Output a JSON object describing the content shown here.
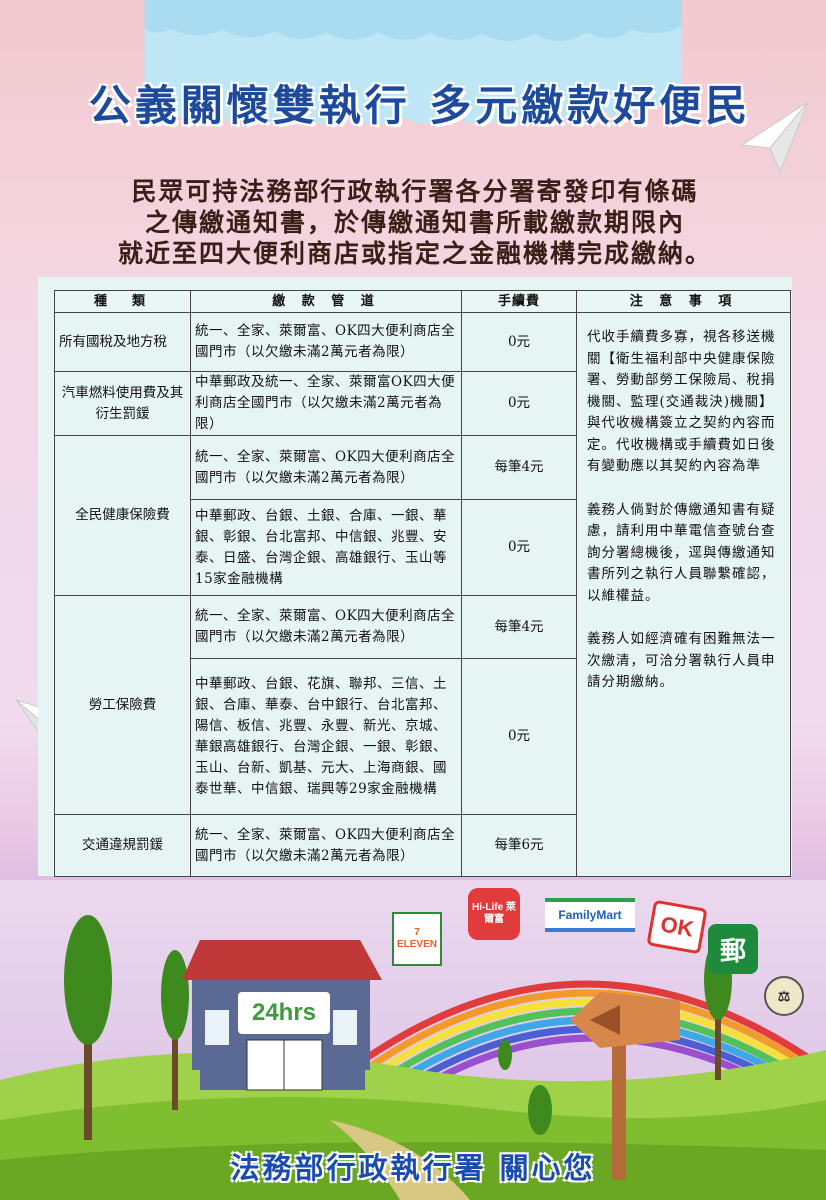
{
  "title": "公義關懷雙執行 多元繳款好便民",
  "intro": {
    "line1": "民眾可持法務部行政執行署各分署寄發印有條碼",
    "line2": "之傳繳通知書，於傳繳通知書所載繳款期限內",
    "line3": "就近至四大便利商店或指定之金融機構完成繳納。"
  },
  "table": {
    "headers": {
      "type": "種　類",
      "location": "繳 款 管 道",
      "fee": "手續費",
      "notes": "注 意 事 項"
    },
    "rows": [
      {
        "type": "所有國稅及地方稅",
        "location": "統一、全家、萊爾富、OK四大便利商店全國門市（以欠繳未滿2萬元者為限）",
        "fee": "0元"
      },
      {
        "type": "汽車燃料使用費及其衍生罰鍰",
        "location": "中華郵政及統一、全家、萊爾富OK四大便利商店全國門市（以欠繳未滿2萬元者為限）",
        "fee": "0元"
      },
      {
        "type": "全民健康保險費",
        "location": "統一、全家、萊爾富、OK四大便利商店全國門市（以欠繳未滿2萬元者為限）",
        "fee": "每筆4元"
      },
      {
        "type": "",
        "location": "中華郵政、台銀、土銀、合庫、一銀、華銀、彰銀、台北富邦、中信銀、兆豐、安泰、日盛、台灣企銀、高雄銀行、玉山等15家金融機構",
        "fee": "0元"
      },
      {
        "type": "勞工保險費",
        "location": "統一、全家、萊爾富、OK四大便利商店全國門市（以欠繳未滿2萬元者為限）",
        "fee": "每筆4元"
      },
      {
        "type": "",
        "location": "中華郵政、台銀、花旗、聯邦、三信、土銀、合庫、華泰、台中銀行、台北富邦、陽信、板信、兆豐、永豐、新光、京城、華銀高雄銀行、台灣企銀、一銀、彰銀、玉山、台新、凱基、元大、上海商銀、國泰世華、中信銀、瑞興等29家金融機構",
        "fee": "0元"
      },
      {
        "type": "交通違規罰鍰",
        "location": "統一、全家、萊爾富、OK四大便利商店全國門市（以欠繳未滿2萬元者為限）",
        "fee": "每筆6元"
      }
    ],
    "notes": [
      "代收手續費多寡，視各移送機關【衛生福利部中央健康保險署、勞動部勞工保險局、稅捐機關、監理(交通裁決)機關】與代收機構簽立之契約內容而定。代收機構或手續費如日後有變動應以其契約內容為準",
      "義務人倘對於傳繳通知書有疑慮，請利用中華電信查號台查詢分署總機後，逕與傳繳通知書所列之執行人員聯繫確認，以維權益。",
      "義務人如經濟確有困難無法一次繳清，可洽分署執行人員申請分期繳納。"
    ]
  },
  "store": {
    "hours": "24hrs"
  },
  "logos": {
    "seven": "7 ELEVEN",
    "hilife": "Hi-Life 萊爾富",
    "familymart": "FamilyMart",
    "ok": "OK",
    "post": "郵"
  },
  "footer": "法務部行政執行署 關心您"
}
